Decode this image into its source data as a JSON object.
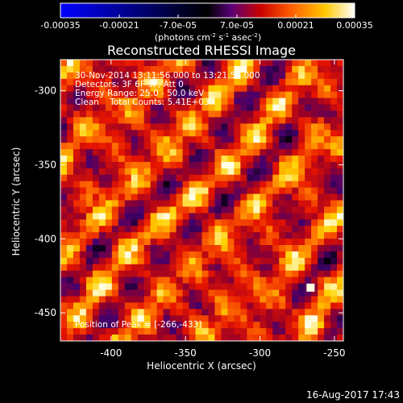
{
  "chart_data": [
    {
      "type": "colorbar",
      "ticks": [
        "-0.00035",
        "-0.00021",
        "-7.0e-05",
        "7.0e-05",
        "0.00021",
        "0.00035"
      ],
      "range": [
        -0.00035,
        0.00035
      ],
      "unit_label": "(photons cm",
      "unit_exp1": "-2",
      "unit_mid": " s",
      "unit_exp2": "-1",
      "unit_tail": " asec",
      "unit_exp3": "-2",
      "unit_close": ")",
      "colormap": [
        "#0000ff",
        "#000000",
        "#800080",
        "#ff0000",
        "#ff8000",
        "#ffff00",
        "#ffffff"
      ]
    },
    {
      "type": "heatmap",
      "title": "Reconstructed RHESSI Image",
      "xlabel": "Heliocentric X (arcsec)",
      "ylabel": "Heliocentric Y (arcsec)",
      "xlim": [
        -434,
        -244
      ],
      "ylim": [
        -469,
        -279
      ],
      "xticks": [
        -400,
        -350,
        -300,
        -250
      ],
      "yticks": [
        -300,
        -350,
        -400,
        -450
      ],
      "info_lines": [
        "30-Nov-2014 13:11:56.000 to 13:21:56.000",
        "Detectors: 3F 6F 9F, Att 0",
        "Energy Range: 25.0 - 50.0 keV",
        "Clean    Total Counts: 5.41E+03"
      ],
      "peak_label": "Position of Peak = [-266,-433]",
      "peak": [
        -266,
        -433
      ]
    }
  ],
  "footer": {
    "date": "16-Aug-2017 17:43"
  }
}
